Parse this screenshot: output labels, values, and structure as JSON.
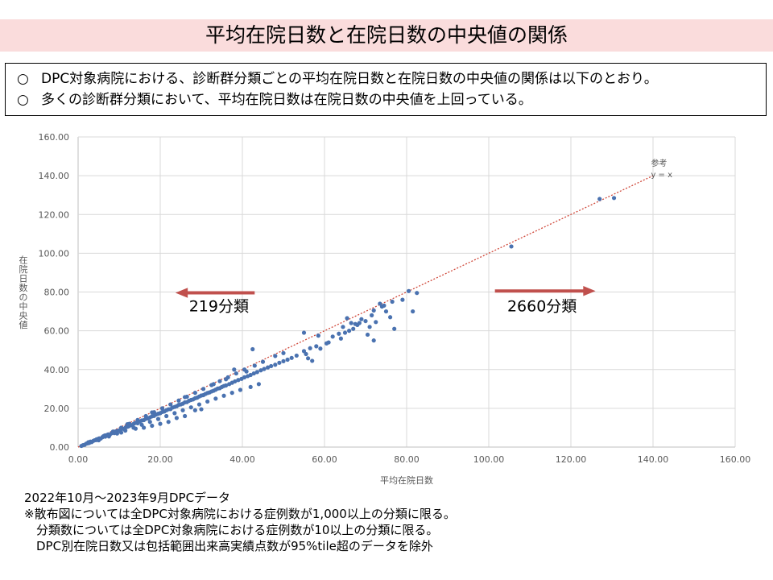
{
  "title": "平均在院日数と在院日数の中央値の関係",
  "summary": [
    {
      "bullet": "○",
      "text": "DPC対象病院における、診断群分類ごとの平均在院日数と在院日数の中央値の関係は以下のとおり。"
    },
    {
      "bullet": "○",
      "text": "多くの診断群分類において、平均在院日数は在院日数の中央値を上回っている。"
    }
  ],
  "chart_data": {
    "type": "scatter",
    "xlabel": "平均在院日数",
    "ylabel": "在院日数の中央値",
    "xlim": [
      0,
      160
    ],
    "ylim": [
      0,
      160
    ],
    "x_ticks": [
      "0.00",
      "20.00",
      "40.00",
      "60.00",
      "80.00",
      "100.00",
      "120.00",
      "140.00",
      "160.00"
    ],
    "y_ticks": [
      "0.00",
      "20.00",
      "40.00",
      "60.00",
      "80.00",
      "100.00",
      "120.00",
      "140.00",
      "160.00"
    ],
    "grid": true,
    "point_color": "#4a72b0",
    "reference_line": {
      "label_top": "参考",
      "label": "y = x",
      "color": "#d04a3c",
      "from": [
        0,
        0
      ],
      "to": [
        140,
        140
      ]
    },
    "annotations": [
      {
        "text": "219分類",
        "direction": "left",
        "color": "#c0504d"
      },
      {
        "text": "2660分類",
        "direction": "right",
        "color": "#c0504d"
      }
    ],
    "series": [
      {
        "values": [
          [
            0.8,
            0.6
          ],
          [
            1.2,
            1.0
          ],
          [
            1.6,
            1.2
          ],
          [
            2.0,
            1.8
          ],
          [
            2.3,
            1.9
          ],
          [
            2.7,
            2.1
          ],
          [
            3.0,
            2.8
          ],
          [
            3.3,
            2.6
          ],
          [
            3.7,
            3.2
          ],
          [
            4.0,
            3.5
          ],
          [
            4.4,
            3.6
          ],
          [
            4.8,
            4.1
          ],
          [
            5.1,
            4.5
          ],
          [
            5.5,
            4.4
          ],
          [
            5.9,
            5.1
          ],
          [
            6.2,
            5.6
          ],
          [
            6.6,
            5.4
          ],
          [
            7.0,
            6.2
          ],
          [
            7.3,
            6.5
          ],
          [
            7.7,
            6.3
          ],
          [
            8.1,
            7.1
          ],
          [
            8.4,
            7.5
          ],
          [
            8.8,
            7.2
          ],
          [
            9.2,
            8.1
          ],
          [
            9.6,
            8.4
          ],
          [
            10.0,
            8.6
          ],
          [
            10.4,
            9.2
          ],
          [
            10.8,
            9.5
          ],
          [
            11.2,
            9.3
          ],
          [
            11.6,
            10.2
          ],
          [
            12.0,
            10.5
          ],
          [
            12.4,
            10.8
          ],
          [
            12.8,
            11.3
          ],
          [
            13.2,
            11.4
          ],
          [
            13.6,
            12.1
          ],
          [
            14.0,
            12.5
          ],
          [
            14.5,
            12.3
          ],
          [
            15.0,
            13.2
          ],
          [
            15.5,
            13.7
          ],
          [
            16.0,
            13.9
          ],
          [
            16.5,
            14.6
          ],
          [
            17.0,
            14.8
          ],
          [
            17.5,
            15.3
          ],
          [
            18.0,
            15.9
          ],
          [
            18.5,
            16.1
          ],
          [
            19.0,
            16.8
          ],
          [
            19.5,
            17.2
          ],
          [
            20.0,
            17.5
          ],
          [
            20.5,
            18.1
          ],
          [
            21.0,
            18.4
          ],
          [
            21.5,
            19.0
          ],
          [
            22.0,
            19.5
          ],
          [
            22.5,
            19.6
          ],
          [
            23.0,
            20.4
          ],
          [
            23.5,
            20.7
          ],
          [
            24.0,
            21.1
          ],
          [
            24.5,
            21.8
          ],
          [
            25.0,
            22.0
          ],
          [
            25.5,
            22.4
          ],
          [
            26.0,
            23.1
          ],
          [
            26.5,
            23.2
          ],
          [
            27.0,
            23.9
          ],
          [
            27.5,
            24.3
          ],
          [
            28.0,
            24.6
          ],
          [
            28.5,
            25.2
          ],
          [
            29.0,
            25.5
          ],
          [
            29.5,
            26.1
          ],
          [
            30.0,
            26.6
          ],
          [
            30.5,
            26.8
          ],
          [
            31.0,
            27.4
          ],
          [
            31.5,
            27.9
          ],
          [
            32.0,
            28.2
          ],
          [
            32.5,
            28.7
          ],
          [
            33.0,
            29.1
          ],
          [
            33.5,
            29.6
          ],
          [
            34.0,
            30.2
          ],
          [
            34.5,
            30.4
          ],
          [
            35.0,
            31.0
          ],
          [
            35.5,
            31.5
          ],
          [
            36.0,
            31.8
          ],
          [
            36.8,
            32.5
          ],
          [
            37.5,
            33.2
          ],
          [
            38.2,
            33.9
          ],
          [
            39.0,
            34.6
          ],
          [
            39.8,
            35.2
          ],
          [
            40.5,
            36.0
          ],
          [
            41.3,
            36.6
          ],
          [
            42.0,
            37.2
          ],
          [
            42.8,
            38.0
          ],
          [
            43.6,
            38.7
          ],
          [
            44.5,
            39.6
          ],
          [
            45.3,
            40.3
          ],
          [
            46.2,
            41.1
          ],
          [
            47.0,
            41.8
          ],
          [
            48.0,
            42.5
          ],
          [
            49.0,
            43.5
          ],
          [
            50.0,
            44.3
          ],
          [
            51.0,
            45.1
          ],
          [
            52.0,
            46.0
          ],
          [
            53.2,
            47.2
          ],
          [
            2.5,
            2.5
          ],
          [
            4.5,
            4.0
          ],
          [
            6.5,
            6.0
          ],
          [
            8.5,
            8.0
          ],
          [
            10.5,
            10.0
          ],
          [
            12.5,
            12.0
          ],
          [
            14.5,
            14.0
          ],
          [
            16.5,
            16.0
          ],
          [
            18.5,
            18.0
          ],
          [
            20.5,
            20.0
          ],
          [
            22.5,
            22.0
          ],
          [
            24.5,
            24.0
          ],
          [
            26.5,
            26.0
          ],
          [
            28.5,
            28.0
          ],
          [
            30.5,
            30.0
          ],
          [
            32.5,
            32.0
          ],
          [
            34.5,
            34.0
          ],
          [
            36.5,
            36.0
          ],
          [
            38.5,
            38.0
          ],
          [
            40.5,
            40.0
          ],
          [
            5.0,
            3.5
          ],
          [
            7.5,
            5.5
          ],
          [
            9.5,
            7.0
          ],
          [
            11.5,
            8.5
          ],
          [
            13.5,
            10.0
          ],
          [
            15.5,
            11.5
          ],
          [
            17.5,
            13.0
          ],
          [
            19.5,
            14.5
          ],
          [
            21.5,
            16.0
          ],
          [
            23.5,
            17.5
          ],
          [
            25.5,
            19.0
          ],
          [
            27.5,
            20.5
          ],
          [
            29.5,
            22.0
          ],
          [
            31.5,
            23.5
          ],
          [
            33.5,
            25.0
          ],
          [
            35.5,
            26.5
          ],
          [
            37.5,
            28.0
          ],
          [
            39.5,
            29.5
          ],
          [
            42.0,
            31.0
          ],
          [
            44.0,
            32.5
          ],
          [
            10.5,
            7.5
          ],
          [
            14.0,
            9.5
          ],
          [
            16.0,
            10.0
          ],
          [
            18.0,
            11.0
          ],
          [
            20.0,
            12.0
          ],
          [
            22.0,
            13.0
          ],
          [
            24.0,
            15.0
          ],
          [
            26.0,
            16.0
          ],
          [
            28.5,
            19.0
          ],
          [
            30.0,
            19.5
          ],
          [
            12.0,
            11.8
          ],
          [
            18.0,
            17.9
          ],
          [
            26.0,
            25.8
          ],
          [
            33.0,
            32.5
          ],
          [
            36.0,
            35.0
          ],
          [
            41.0,
            39.0
          ],
          [
            45.0,
            44.0
          ],
          [
            48.0,
            47.0
          ],
          [
            50.0,
            48.5
          ],
          [
            43.0,
            42.0
          ],
          [
            42.5,
            50.5
          ],
          [
            38.0,
            40.0
          ],
          [
            55.0,
            49.5
          ],
          [
            56.5,
            51.0
          ],
          [
            58.0,
            52.0
          ],
          [
            55.5,
            48.0
          ],
          [
            57.0,
            44.5
          ],
          [
            56.0,
            45.8
          ],
          [
            59.0,
            50.8
          ],
          [
            60.5,
            53.5
          ],
          [
            55.0,
            59.0
          ],
          [
            58.5,
            57.5
          ],
          [
            61.0,
            54.0
          ],
          [
            62.0,
            57.0
          ],
          [
            63.5,
            58.5
          ],
          [
            65.0,
            59.0
          ],
          [
            66.0,
            60.0
          ],
          [
            64.0,
            56.0
          ],
          [
            67.0,
            61.0
          ],
          [
            64.5,
            62.0
          ],
          [
            65.5,
            66.5
          ],
          [
            66.5,
            64.0
          ],
          [
            68.0,
            63.0
          ],
          [
            69.0,
            66.0
          ],
          [
            70.0,
            65.0
          ],
          [
            71.0,
            62.0
          ],
          [
            72.5,
            64.5
          ],
          [
            70.5,
            58.0
          ],
          [
            68.5,
            64.0
          ],
          [
            67.5,
            63.5
          ],
          [
            73.5,
            74.0
          ],
          [
            74.5,
            73.0
          ],
          [
            75.0,
            70.0
          ],
          [
            76.0,
            67.0
          ],
          [
            77.0,
            61.0
          ],
          [
            72.0,
            70.5
          ],
          [
            74.0,
            72.5
          ],
          [
            71.5,
            68.0
          ],
          [
            72.0,
            55.0
          ],
          [
            76.5,
            75.0
          ],
          [
            79.0,
            76.0
          ],
          [
            80.5,
            80.5
          ],
          [
            81.5,
            70.0
          ],
          [
            82.5,
            79.5
          ],
          [
            105.5,
            103.5
          ],
          [
            127.0,
            128.0
          ],
          [
            130.5,
            128.5
          ]
        ]
      }
    ]
  },
  "footnotes": [
    "2022年10月～2023年9月DPCデータ",
    "※散布図については全DPC対象病院における症例数が1,000以上の分類に限る。",
    "分類数については全DPC対象病院における症例数が10以上の分類に限る。",
    "DPC別在院日数又は包括範囲出来高実績点数が95%tile超のデータを除外"
  ]
}
